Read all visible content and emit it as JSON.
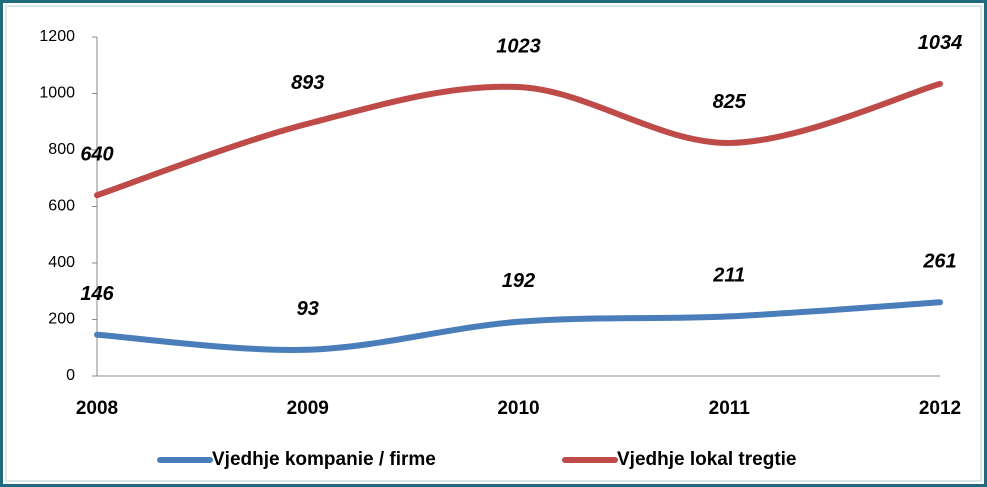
{
  "chart_data": {
    "type": "line",
    "categories": [
      "2008",
      "2009",
      "2010",
      "2011",
      "2012"
    ],
    "series": [
      {
        "name": "Vjedhje kompanie / firme",
        "color": "#4a7ebb",
        "values": [
          146,
          93,
          192,
          211,
          261
        ]
      },
      {
        "name": "Vjedhje lokal tregtie",
        "color": "#be4b48",
        "values": [
          640,
          893,
          1023,
          825,
          1034
        ]
      }
    ],
    "ylim": [
      0,
      1200
    ],
    "yticks": [
      0,
      200,
      400,
      600,
      800,
      1000,
      1200
    ],
    "grid": false,
    "legend": "bottom",
    "smooth": true
  }
}
